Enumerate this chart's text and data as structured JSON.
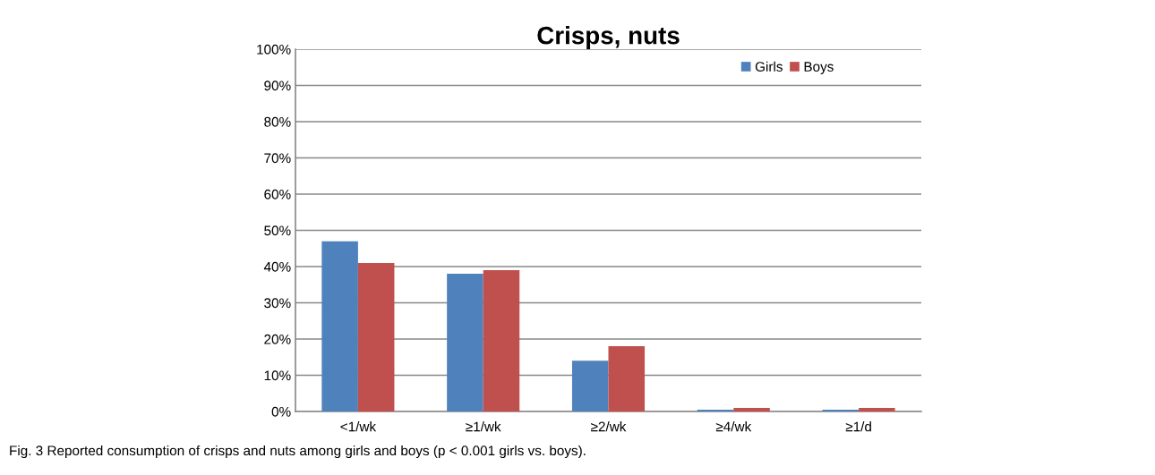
{
  "chart_data": {
    "type": "bar",
    "title": "Crisps, nuts",
    "categories": [
      "<1/wk",
      "≥1/wk",
      "≥2/wk",
      "≥4/wk",
      "≥1/d"
    ],
    "series": [
      {
        "name": "Girls",
        "color": "#4f81bd",
        "values": [
          47,
          38,
          14,
          0.5,
          0.5
        ]
      },
      {
        "name": "Boys",
        "color": "#c0504d",
        "values": [
          41,
          39,
          18,
          1,
          1
        ]
      }
    ],
    "ylim": [
      0,
      100
    ],
    "yticks": [
      {
        "value": 0,
        "label": "0%"
      },
      {
        "value": 10,
        "label": "10%"
      },
      {
        "value": 20,
        "label": "20%"
      },
      {
        "value": 30,
        "label": "30%"
      },
      {
        "value": 40,
        "label": "40%"
      },
      {
        "value": 50,
        "label": "50%"
      },
      {
        "value": 60,
        "label": "60%"
      },
      {
        "value": 70,
        "label": "70%"
      },
      {
        "value": 80,
        "label": "80%"
      },
      {
        "value": 90,
        "label": "90%"
      },
      {
        "value": 100,
        "label": "100%"
      }
    ],
    "grid": "y",
    "legend": "top right",
    "annotations": [
      "Fig. 3 Reported consumption of crisps and nuts among girls and boys (p < 0.001 girls vs. boys)."
    ]
  }
}
